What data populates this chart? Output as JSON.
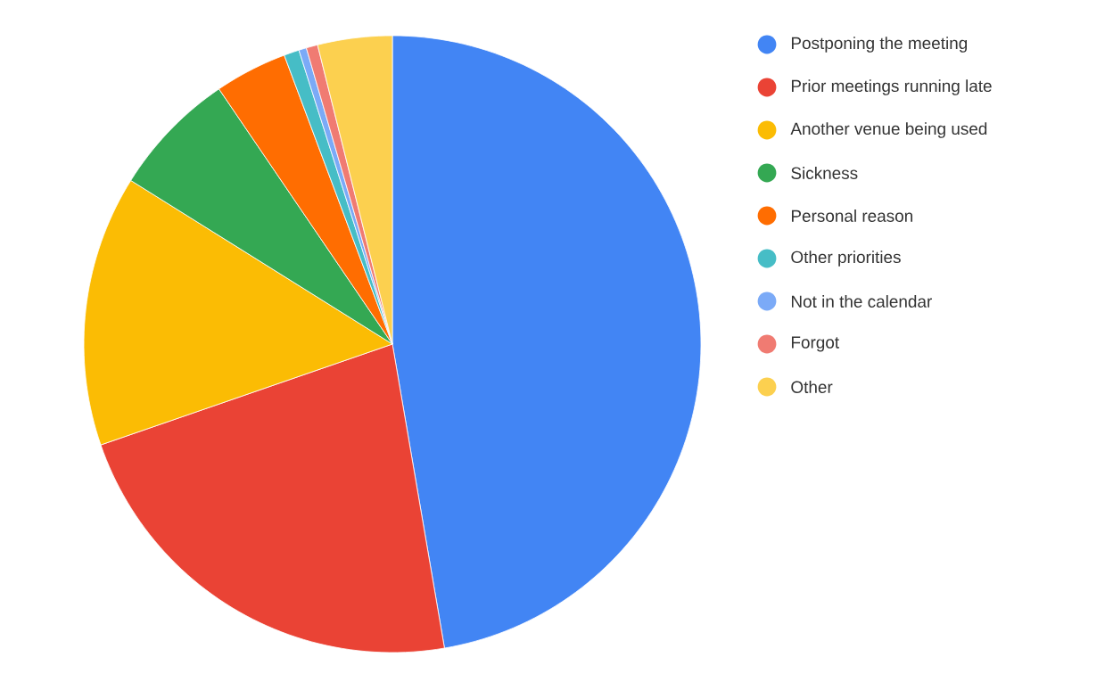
{
  "chart_data": {
    "type": "pie",
    "categories": [
      "Postponing the meeting",
      "Prior meetings running late",
      "Another venue being used",
      "Sickness",
      "Personal reason",
      "Other priorities",
      "Not in the calendar",
      "Forgot",
      "Other"
    ],
    "values": [
      47.3,
      22.4,
      14.2,
      6.6,
      3.8,
      0.8,
      0.4,
      0.6,
      3.9
    ],
    "colors": [
      "#4285f4",
      "#ea4335",
      "#fbbc04",
      "#34a853",
      "#ff6d01",
      "#46bdc6",
      "#7baaf7",
      "#f07b72",
      "#fcd04f"
    ],
    "legend": "right"
  }
}
